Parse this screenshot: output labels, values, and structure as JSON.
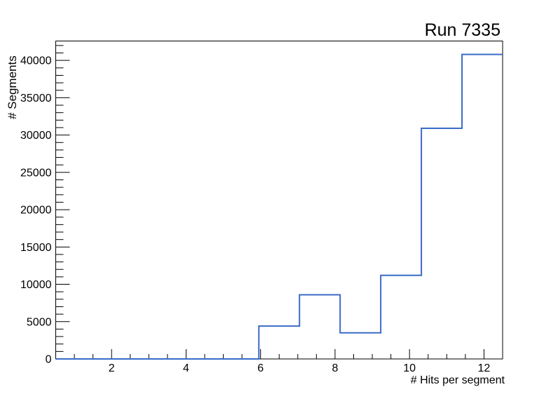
{
  "title": "Run 7335",
  "chart_data": {
    "type": "bar",
    "subtype": "step-histogram",
    "title": "Run 7335",
    "xlabel": "# Hits per segment",
    "ylabel": "# Segments",
    "bin_edges": [
      0.5,
      1.5909,
      2.6818,
      3.7727,
      4.8636,
      5.9545,
      7.0455,
      8.1364,
      9.2273,
      10.3182,
      11.4091,
      12.5
    ],
    "values": [
      0,
      0,
      0,
      0,
      0,
      4400,
      8600,
      3500,
      11200,
      30900,
      40800
    ],
    "xlim": [
      0.5,
      12.5
    ],
    "ylim": [
      0,
      42600
    ],
    "x_major_ticks": [
      2,
      4,
      6,
      8,
      10,
      12
    ],
    "x_minor_step": 0.5,
    "y_major_ticks": [
      0,
      5000,
      10000,
      15000,
      20000,
      25000,
      30000,
      35000,
      40000
    ],
    "y_minor_step": 1000,
    "grid": false,
    "legend": false,
    "line_color": "#3a6bc8",
    "frame_color": "#000000",
    "text_color": "#000000",
    "background_color": "#ffffff"
  }
}
